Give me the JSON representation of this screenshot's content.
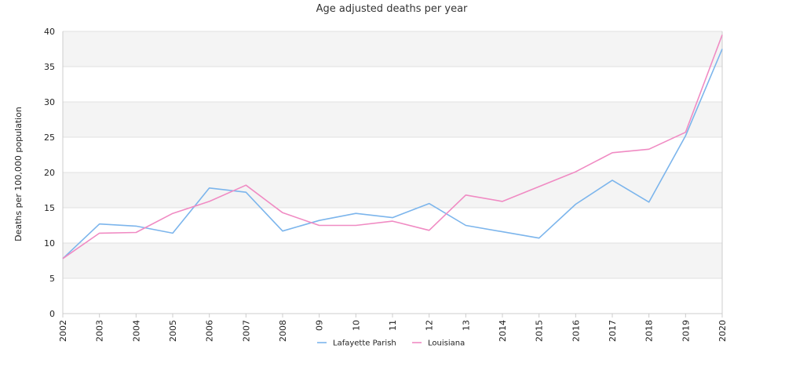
{
  "chart_data": {
    "type": "line",
    "title": "Age adjusted deaths per year",
    "xlabel": "",
    "ylabel": "Deaths per 100,000 population",
    "categories": [
      "2002",
      "2003",
      "2004",
      "2005",
      "2006",
      "2007",
      "2008",
      "09",
      "10",
      "11",
      "12",
      "13",
      "2014",
      "2015",
      "2016",
      "2017",
      "2018",
      "2019",
      "2020"
    ],
    "ylim": [
      0,
      40
    ],
    "yticks": [
      0,
      5,
      10,
      15,
      20,
      25,
      30,
      35,
      40
    ],
    "grid": "horizontal bands",
    "legend_position": "bottom",
    "series": [
      {
        "name": "Lafayette Parish",
        "color": "#7cb5ec",
        "values": [
          7.8,
          12.7,
          12.4,
          11.4,
          17.8,
          17.2,
          11.7,
          13.2,
          14.2,
          13.6,
          15.6,
          12.5,
          11.6,
          10.7,
          15.5,
          18.9,
          15.8,
          25.2,
          37.5
        ]
      },
      {
        "name": "Louisiana",
        "color": "#f08bc3",
        "values": [
          7.8,
          11.4,
          11.5,
          14.2,
          15.9,
          18.2,
          14.3,
          12.5,
          12.5,
          13.1,
          11.8,
          16.8,
          15.9,
          18.0,
          20.1,
          22.8,
          23.3,
          25.7,
          39.5
        ]
      }
    ]
  },
  "colors": {
    "band": "#f4f4f4",
    "gridline": "#e0e0e0",
    "axis": "#cccccc"
  }
}
